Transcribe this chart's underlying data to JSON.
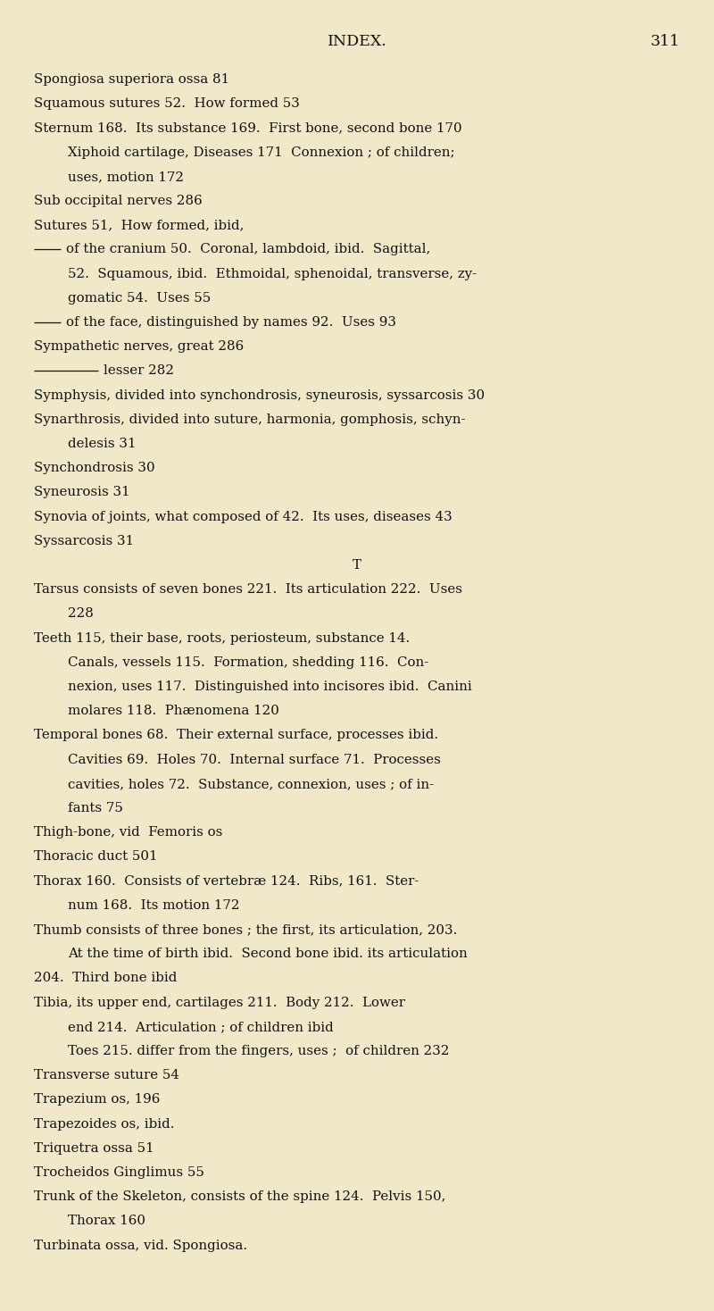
{
  "bg_color": "#f0e8c8",
  "title": "INDEX.",
  "page_number": "311",
  "title_fontsize": 12.5,
  "body_fontsize": 10.8,
  "lines": [
    {
      "text": "Spongiosa superiora ossa 81",
      "indent": 0,
      "dash": 0
    },
    {
      "text": "Squamous sutures 52.  How formed 53",
      "indent": 0,
      "dash": 0
    },
    {
      "text": "Sternum 168.  Its substance 169.  First bone, second bone 170",
      "indent": 0,
      "dash": 0
    },
    {
      "text": "Xiphoid cartilage, Diseases 171  Connexion ; of children;",
      "indent": 1,
      "dash": 0
    },
    {
      "text": "uses, motion 172",
      "indent": 1,
      "dash": 0
    },
    {
      "text": "Sub occipital nerves 286",
      "indent": 0,
      "dash": 0
    },
    {
      "text": "Sutures 51,  How formed, ibid,",
      "indent": 0,
      "dash": 0
    },
    {
      "text": "of the cranium 50.  Coronal, lambdoid, ibid.  Sagittal,",
      "indent": 0,
      "dash": 1
    },
    {
      "text": "52.  Squamous, ibid.  Ethmoidal, sphenoidal, transverse, zy-",
      "indent": 1,
      "dash": 0
    },
    {
      "text": "gomatic 54.  Uses 55",
      "indent": 1,
      "dash": 0
    },
    {
      "text": "of the face, distinguished by names 92.  Uses 93",
      "indent": 0,
      "dash": 1
    },
    {
      "text": "Sympathetic nerves, great 286",
      "indent": 0,
      "dash": 0
    },
    {
      "text": "lesser 282",
      "indent": 0,
      "dash": 2
    },
    {
      "text": "Symphysis, divided into synchondrosis, syneurosis, syssarcosis 30",
      "indent": 0,
      "dash": 0
    },
    {
      "text": "Synarthrosis, divided into suture, harmonia, gomphosis, schyn-",
      "indent": 0,
      "dash": 0
    },
    {
      "text": "delesis 31",
      "indent": 1,
      "dash": 0
    },
    {
      "text": "Synchondrosis 30",
      "indent": 0,
      "dash": 0
    },
    {
      "text": "Syneurosis 31",
      "indent": 0,
      "dash": 0
    },
    {
      "text": "Synovia of joints, what composed of 42.  Its uses, diseases 43",
      "indent": 0,
      "dash": 0
    },
    {
      "text": "Syssarcosis 31",
      "indent": 0,
      "dash": 0
    },
    {
      "text": "T",
      "indent": 0,
      "dash": 0,
      "centered": true
    },
    {
      "text": "Tarsus consists of seven bones 221.  Its articulation 222.  Uses",
      "indent": 0,
      "dash": 0
    },
    {
      "text": "228",
      "indent": 1,
      "dash": 0
    },
    {
      "text": "Teeth 115, their base, roots, periosteum, substance 14.",
      "indent": 0,
      "dash": 0
    },
    {
      "text": "Canals, vessels 115.  Formation, shedding 116.  Con-",
      "indent": 1,
      "dash": 0
    },
    {
      "text": "nexion, uses 117.  Distinguished into incisores ibid.  Canini",
      "indent": 1,
      "dash": 0
    },
    {
      "text": "molares 118.  Phænomena 120",
      "indent": 1,
      "dash": 0
    },
    {
      "text": "Temporal bones 68.  Their external surface, processes ibid.",
      "indent": 0,
      "dash": 0
    },
    {
      "text": "Cavities 69.  Holes 70.  Internal surface 71.  Processes",
      "indent": 1,
      "dash": 0
    },
    {
      "text": "cavities, holes 72.  Substance, connexion, uses ; of in-",
      "indent": 1,
      "dash": 0
    },
    {
      "text": "fants 75",
      "indent": 1,
      "dash": 0
    },
    {
      "text": "Thigh-bone, vid  Femoris os",
      "indent": 0,
      "dash": 0
    },
    {
      "text": "Thoracic duct 501",
      "indent": 0,
      "dash": 0
    },
    {
      "text": "Thorax 160.  Consists of vertebræ 124.  Ribs, 161.  Ster-",
      "indent": 0,
      "dash": 0
    },
    {
      "text": "num 168.  Its motion 172",
      "indent": 1,
      "dash": 0
    },
    {
      "text": "Thumb consists of three bones ; the first, its articulation, 203.",
      "indent": 0,
      "dash": 0
    },
    {
      "text": "At the time of birth ibid.  Second bone ibid. its articulation",
      "indent": 1,
      "dash": 0
    },
    {
      "text": "204.  Third bone ibid",
      "indent": 0,
      "dash": 0
    },
    {
      "text": "Tibia, its upper end, cartilages 211.  Body 212.  Lower",
      "indent": 0,
      "dash": 0
    },
    {
      "text": "end 214.  Articulation ; of children ibid",
      "indent": 1,
      "dash": 0
    },
    {
      "text": "Toes 215. differ from the fingers, uses ;  of children 232",
      "indent": 1,
      "dash": 0
    },
    {
      "text": "Transverse suture 54",
      "indent": 0,
      "dash": 0
    },
    {
      "text": "Trapezium os, 196",
      "indent": 0,
      "dash": 0
    },
    {
      "text": "Trapezoides os, ibid.",
      "indent": 0,
      "dash": 0
    },
    {
      "text": "Triquetra ossa 51",
      "indent": 0,
      "dash": 0
    },
    {
      "text": "Trocheidos Ginglimus 55",
      "indent": 0,
      "dash": 0
    },
    {
      "text": "Trunk of the Skeleton, consists of the spine 124.  Pelvis 150,",
      "indent": 0,
      "dash": 0
    },
    {
      "text": "Thorax 160",
      "indent": 1,
      "dash": 0
    },
    {
      "text": "Turbinata ossa, vid. Spongiosa.",
      "indent": 0,
      "dash": 0
    }
  ]
}
